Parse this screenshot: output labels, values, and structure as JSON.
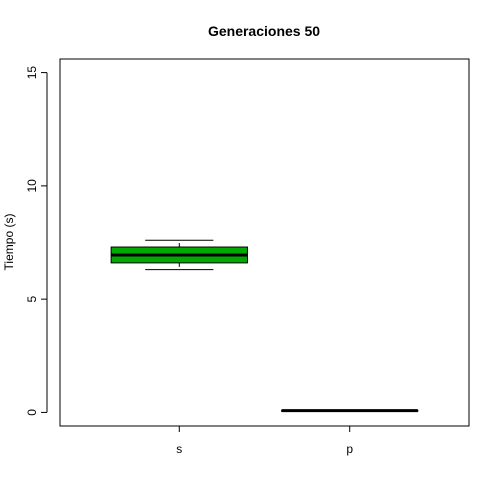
{
  "chart_data": {
    "type": "box",
    "title": "Generaciones 50",
    "xlabel": "",
    "ylabel": "Tiempo (s)",
    "ylim": [
      -0.6,
      15.6
    ],
    "yticks": [
      0,
      5,
      10,
      15
    ],
    "ytick_labels": [
      "0",
      "5",
      "10",
      "15"
    ],
    "grid": false,
    "legend": "none",
    "categories": [
      "s",
      "p"
    ],
    "boxes": [
      {
        "category": "s",
        "whisker_low": 6.3,
        "q1": 6.6,
        "median": 6.95,
        "q3": 7.3,
        "whisker_high": 7.6,
        "color": "#00AA00"
      },
      {
        "category": "p",
        "whisker_low": 0.08,
        "q1": 0.08,
        "median": 0.08,
        "q3": 0.08,
        "whisker_high": 0.08,
        "color": "#0000FF"
      }
    ]
  }
}
